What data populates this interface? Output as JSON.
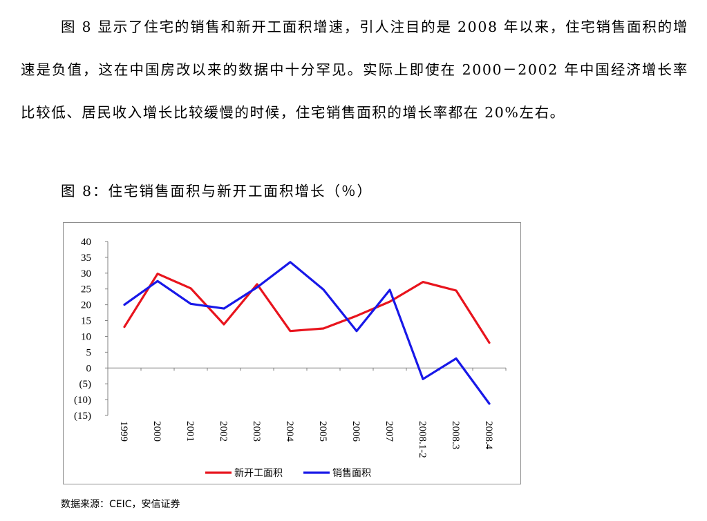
{
  "paragraph": "图 8 显示了住宅的销售和新开工面积增速，引人注目的是 2008 年以来，住宅销售面积的增速是负值，这在中国房改以来的数据中十分罕见。实际上即使在 2000－2002 年中国经济增长率比较低、居民收入增长比较缓慢的时候，住宅销售面积的增长率都在 20%左右。",
  "figure_title": "图 8：住宅销售面积与新开工面积增长（％）",
  "source": "数据来源：CEIC，安信证券",
  "chart_data": {
    "type": "line",
    "categories": [
      "1999",
      "2000",
      "2001",
      "2002",
      "2003",
      "2004",
      "2005",
      "2006",
      "2007",
      "2008.1-2",
      "2008.3",
      "2008.4"
    ],
    "series": [
      {
        "name": "新开工面积",
        "color": "#e8141d",
        "values": [
          13,
          29.8,
          25.2,
          13.8,
          26.5,
          11.7,
          12.5,
          16.5,
          21,
          27.2,
          24.5,
          8
        ]
      },
      {
        "name": "销售面积",
        "color": "#1818e8",
        "values": [
          20,
          27.5,
          20.3,
          18.8,
          25.5,
          33.5,
          24.8,
          11.7,
          24.7,
          -3.5,
          3,
          -11.3
        ]
      }
    ],
    "yticks": [
      "40",
      "35",
      "30",
      "25",
      "20",
      "15",
      "10",
      "5",
      "0",
      "(5)",
      "(10)",
      "(15)"
    ],
    "ylim": [
      -15,
      40
    ],
    "grid": false,
    "legend": "bottom"
  }
}
